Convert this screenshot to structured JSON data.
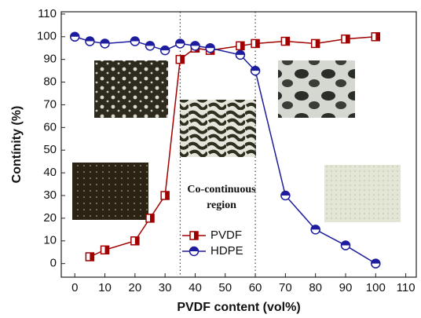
{
  "chart_data": {
    "type": "line",
    "x_label": "PVDF content (vol%)",
    "y_label": "Contínity (%)",
    "x": [
      0,
      5,
      10,
      20,
      25,
      30,
      35,
      40,
      45,
      55,
      60,
      70,
      80,
      90,
      100
    ],
    "series": [
      {
        "name": "PVDF",
        "color": "#a00000",
        "marker": "square",
        "values": [
          null,
          3,
          6,
          10,
          20,
          30,
          90,
          95,
          94,
          96,
          97,
          98,
          97,
          99,
          100
        ]
      },
      {
        "name": "HDPE",
        "color": "#1c1c9c",
        "marker": "circle",
        "values": [
          100,
          98,
          97,
          98,
          96,
          94,
          97,
          96,
          95,
          92,
          85,
          30,
          15,
          8,
          0
        ]
      }
    ],
    "xlim": [
      -4.5,
      113.5
    ],
    "xticks": [
      0,
      10,
      20,
      30,
      40,
      50,
      60,
      70,
      80,
      90,
      100,
      110
    ],
    "ylim": [
      -6,
      111
    ],
    "yticks": [
      0,
      10,
      20,
      30,
      40,
      50,
      60,
      70,
      80,
      90,
      100,
      110
    ],
    "region_bounds": [
      35,
      60
    ],
    "annotation": [
      "Co-continuous",
      "region"
    ],
    "legend": "lower-center"
  }
}
